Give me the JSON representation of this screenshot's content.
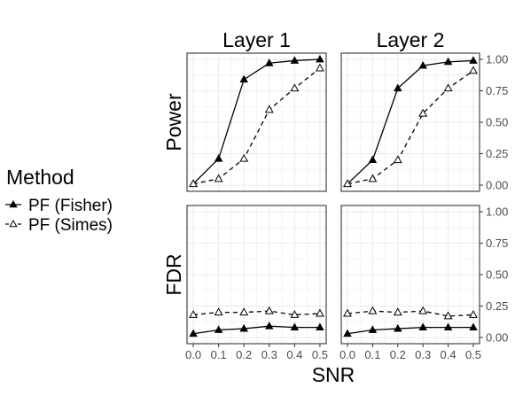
{
  "chart_data": {
    "type": "line",
    "title": "",
    "xlabel": "SNR",
    "x": [
      0.0,
      0.1,
      0.2,
      0.3,
      0.4,
      0.5
    ],
    "x_tick_labels": [
      "0.0",
      "0.1",
      "0.2",
      "0.3",
      "0.4",
      "0.5"
    ],
    "xlim": [
      0.0,
      0.5
    ],
    "ylim": [
      0.0,
      1.0
    ],
    "y_tick_labels": [
      "1.00",
      "0.75",
      "0.50",
      "0.25",
      "0.00"
    ],
    "y_ticks": [
      1.0,
      0.75,
      0.5,
      0.25,
      0.0
    ],
    "columns": [
      "Layer 1",
      "Layer 2"
    ],
    "rows": [
      "Power",
      "FDR"
    ],
    "grid": true,
    "legend": {
      "title": "Method",
      "position": "left",
      "entries": [
        {
          "name": "PF (Fisher)",
          "marker": "filled-triangle",
          "linestyle": "solid"
        },
        {
          "name": "PF (Simes)",
          "marker": "open-triangle",
          "linestyle": "dashed"
        }
      ]
    },
    "panels": [
      {
        "row": "Power",
        "column": "Layer 1",
        "series": [
          {
            "name": "PF (Fisher)",
            "values": [
              0.01,
              0.21,
              0.84,
              0.97,
              0.99,
              1.0
            ]
          },
          {
            "name": "PF (Simes)",
            "values": [
              0.01,
              0.05,
              0.21,
              0.6,
              0.77,
              0.93
            ]
          }
        ]
      },
      {
        "row": "Power",
        "column": "Layer 2",
        "series": [
          {
            "name": "PF (Fisher)",
            "values": [
              0.01,
              0.2,
              0.77,
              0.95,
              0.98,
              0.99
            ]
          },
          {
            "name": "PF (Simes)",
            "values": [
              0.01,
              0.05,
              0.2,
              0.57,
              0.77,
              0.91
            ]
          }
        ]
      },
      {
        "row": "FDR",
        "column": "Layer 1",
        "series": [
          {
            "name": "PF (Fisher)",
            "values": [
              0.03,
              0.06,
              0.07,
              0.09,
              0.08,
              0.08
            ]
          },
          {
            "name": "PF (Simes)",
            "values": [
              0.18,
              0.2,
              0.2,
              0.21,
              0.18,
              0.19
            ]
          }
        ]
      },
      {
        "row": "FDR",
        "column": "Layer 2",
        "series": [
          {
            "name": "PF (Fisher)",
            "values": [
              0.03,
              0.06,
              0.07,
              0.08,
              0.08,
              0.08
            ]
          },
          {
            "name": "PF (Simes)",
            "values": [
              0.19,
              0.21,
              0.2,
              0.21,
              0.17,
              0.18
            ]
          }
        ]
      }
    ],
    "colors": {
      "line": "#000000",
      "grid": "#ebebeb",
      "panel_border": "#333333",
      "text": "#000000",
      "tick_text": "#4d4d4d"
    }
  }
}
